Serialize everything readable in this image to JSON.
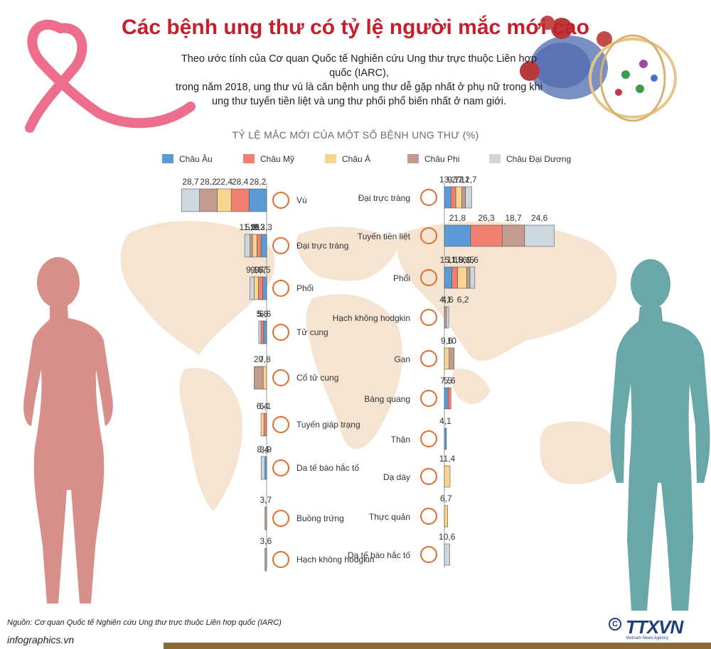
{
  "title": "Các bệnh ung thư có tỷ lệ người mắc mới cao",
  "intro_lines": [
    "Theo ước tính của Cơ quan Quốc tế Nghiên cứu Ung thư trực thuộc Liên hợp quốc (IARC),",
    "trong năm 2018, ung thư vú là căn bệnh ung thư dễ gặp nhất ở phụ nữ trong khi",
    "ung thư tuyến tiền liệt và ung thư phổi phổ biến nhất ở nam giới."
  ],
  "source": "Nguồn: Cơ quan Quốc tế Nghiên cứu Ung thư trực thuộc Liên hợp quốc (IARC)",
  "site": "infographics.vn",
  "brand": "TTXVN",
  "brand_sub": "Vietnam News Agency",
  "copyright_symbol": "C",
  "colors": {
    "Châu Âu": "#5b9bd5",
    "Châu Mỹ": "#ef7f6e",
    "Châu Á": "#f8d58c",
    "Châu Phi": "#c39a8e",
    "Châu Đại Dương": "#cdd7e0",
    "map": "#f6e4d3",
    "female": "#d98f89",
    "male": "#6aa7a8",
    "ribbon": "#ec6e8c",
    "icon": "#e26b2c"
  },
  "chart_data": {
    "type": "bar",
    "title": "TỶ LỆ MẮC MỚI CỦA MỘT SỐ BỆNH UNG THƯ (%)",
    "legend": [
      "Châu Âu",
      "Châu Mỹ",
      "Châu Á",
      "Châu Phi",
      "Châu Đại Dương"
    ],
    "legend_placement": "top",
    "female": [
      {
        "label": "Vú",
        "values": {
          "Châu Âu": 28.2,
          "Châu Mỹ": 28.4,
          "Châu Á": 22.4,
          "Châu Phi": 28.2,
          "Châu Đại Dương": 28.7
        },
        "icon": "breast-icon"
      },
      {
        "label": "Đại trực tràng",
        "values": {
          "Châu Âu": 12.3,
          "Châu Mỹ": 9.3,
          "Châu Á": 10,
          "Châu Phi": 5.2,
          "Châu Đại Dương": 11.9
        },
        "icon": "colon-icon"
      },
      {
        "label": "Phổi",
        "values": {
          "Châu Âu": 8.5,
          "Châu Mỹ": 9.7,
          "Châu Á": 9.6,
          "Châu Phi": null,
          "Châu Đại Dương": 9.1
        },
        "icon": "lung-icon"
      },
      {
        "label": "Tử cung",
        "values": {
          "Châu Âu": 6.6,
          "Châu Mỹ": 5.8,
          "Châu Á": null,
          "Châu Phi": null,
          "Châu Đại Dương": 5
        },
        "icon": "uterus-icon"
      },
      {
        "label": "Cổ tử cung",
        "values": {
          "Châu Âu": null,
          "Châu Mỹ": null,
          "Châu Á": 7.8,
          "Châu Phi": 20,
          "Châu Đại Dương": null
        },
        "icon": "cervix-icon"
      },
      {
        "label": "Tuyến giáp trạng",
        "values": {
          "Châu Âu": null,
          "Châu Mỹ": 6.1,
          "Châu Á": 6.4,
          "Châu Phi": null,
          "Châu Đại Dương": null
        },
        "icon": "thyroid-icon"
      },
      {
        "label": "Da tế bào hắc tố",
        "values": {
          "Châu Âu": 3.9,
          "Châu Mỹ": null,
          "Châu Á": null,
          "Châu Phi": null,
          "Châu Đại Dương": 8.4
        },
        "icon": "skin-icon"
      },
      {
        "label": "Buồng trứng",
        "values": {
          "Châu Âu": null,
          "Châu Mỹ": null,
          "Châu Á": null,
          "Châu Phi": 3.7,
          "Châu Đại Dương": null
        },
        "icon": "ovary-icon"
      },
      {
        "label": "Hạch không hodgkin",
        "values": {
          "Châu Âu": null,
          "Châu Mỹ": null,
          "Châu Á": null,
          "Châu Phi": 3.6,
          "Châu Đại Dương": null
        },
        "icon": "lymph-icon"
      }
    ],
    "male": [
      {
        "label": "Đại trực tràng",
        "values": {
          "Châu Âu": 13.2,
          "Châu Mỹ": 9.7,
          "Châu Á": 12,
          "Châu Phi": 7.1,
          "Châu Đại Dương": 12.7
        },
        "icon": "colon-icon"
      },
      {
        "label": "Tuyến tiền liệt",
        "values": {
          "Châu Âu": 21.8,
          "Châu Mỹ": 26.3,
          "Châu Á": null,
          "Châu Phi": 18.7,
          "Châu Đại Dương": 24.6
        },
        "icon": "prostate-icon"
      },
      {
        "label": "Phổi",
        "values": {
          "Châu Âu": 15.1,
          "Châu Mỹ": 11.5,
          "Châu Á": 18.1,
          "Châu Phi": 6.5,
          "Châu Đại Dương": 9.6
        },
        "icon": "lung-icon"
      },
      {
        "label": "Hạch không hodgkin",
        "values": {
          "Châu Âu": null,
          "Châu Mỹ": null,
          "Châu Á": null,
          "Châu Phi": 4.1,
          "Châu Đại Dương": 4.6
        },
        "icon": "lymph-icon",
        "extra_label": "6,2"
      },
      {
        "label": "Gan",
        "values": {
          "Châu Âu": null,
          "Châu Mỹ": null,
          "Châu Á": 9.6,
          "Châu Phi": 10,
          "Châu Đại Dương": null
        },
        "icon": "liver-icon"
      },
      {
        "label": "Bàng quang",
        "values": {
          "Châu Âu": 7.5,
          "Châu Mỹ": 5.6,
          "Châu Á": null,
          "Châu Phi": null,
          "Châu Đại Dương": null
        },
        "icon": "bladder-icon"
      },
      {
        "label": "Thận",
        "values": {
          "Châu Âu": 4.1,
          "Châu Mỹ": null,
          "Châu Á": null,
          "Châu Phi": null,
          "Châu Đại Dương": null
        },
        "icon": "kidney-icon"
      },
      {
        "label": "Dạ dày",
        "values": {
          "Châu Âu": null,
          "Châu Mỹ": null,
          "Châu Á": 11.4,
          "Châu Phi": null,
          "Châu Đại Dương": null
        },
        "icon": "stomach-icon"
      },
      {
        "label": "Thực quản",
        "values": {
          "Châu Âu": null,
          "Châu Mỹ": null,
          "Châu Á": 6.7,
          "Châu Phi": null,
          "Châu Đại Dương": null
        },
        "icon": "esophagus-icon"
      },
      {
        "label": "Da tế bào hắc tố",
        "values": {
          "Châu Âu": null,
          "Châu Mỹ": null,
          "Châu Á": null,
          "Châu Phi": null,
          "Châu Đại Dương": 10.6
        },
        "icon": "skin-icon"
      }
    ]
  }
}
